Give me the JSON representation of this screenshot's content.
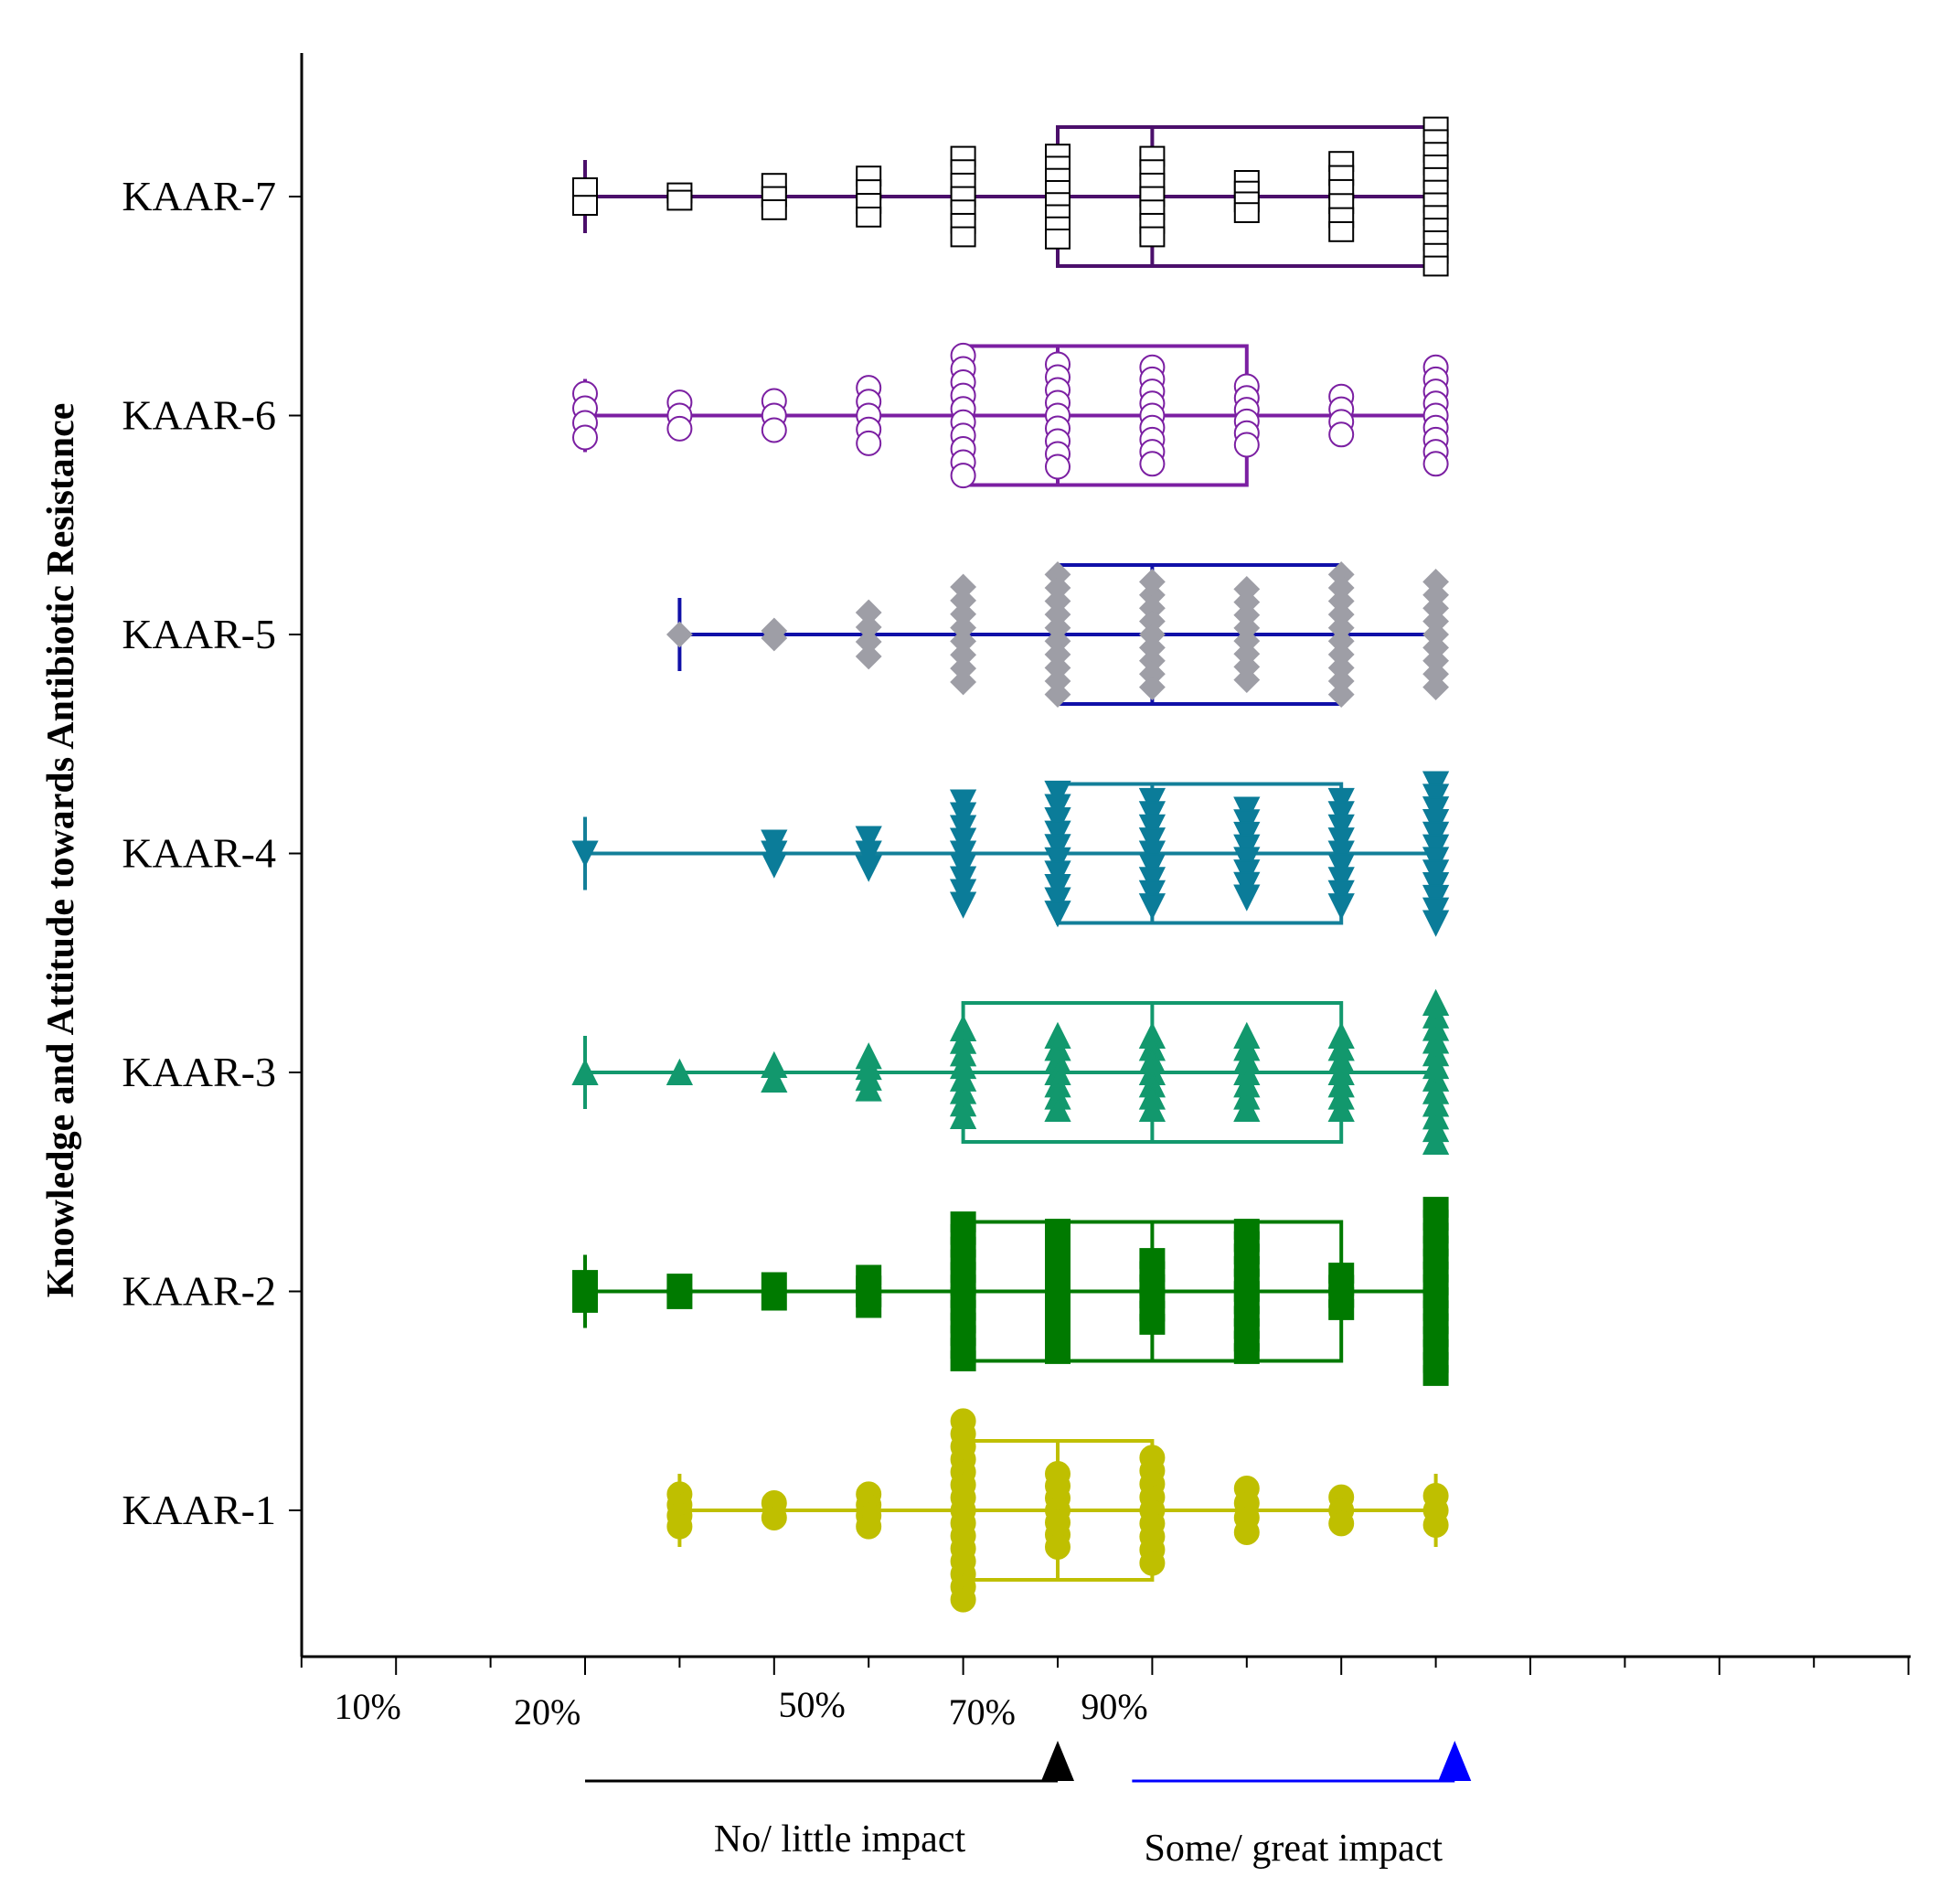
{
  "chart_data": {
    "type": "box",
    "ylabel": "Knowledge and Attitude towards Antibiotic Resistance",
    "xlabel": "",
    "xlim": [
      -3,
      14
    ],
    "categories": [
      "KAAR-7",
      "KAAR-6",
      "KAAR-5",
      "KAAR-4",
      "KAAR-3",
      "KAAR-2",
      "KAAR-1"
    ],
    "x_tick_labels": [
      {
        "text": "10%",
        "x": 2.7
      },
      {
        "text": "20%",
        "x": 4.6
      },
      {
        "text": "50%",
        "x": 7.4
      },
      {
        "text": "70%",
        "x": 9.2
      },
      {
        "text": "90%",
        "x": 10.6
      }
    ],
    "annotations": {
      "no_impact_label": "No/ little impact",
      "some_impact_label": "Some/ great impact",
      "no_impact_range": [
        0,
        5
      ],
      "some_impact_range": [
        5.4,
        9.2
      ],
      "no_impact_color": "#000000",
      "some_impact_color": "#0000ff"
    },
    "series": [
      {
        "category": "KAAR-7",
        "color": "#4b0f6b",
        "marker": "square",
        "fill": "#ffffff",
        "edge": "#000000",
        "whisker": [
          0,
          9
        ],
        "q1": 5,
        "median": 6,
        "q3": 9,
        "points": [
          {
            "x": 0,
            "spread": 0.12
          },
          {
            "x": 1,
            "spread": 0.05
          },
          {
            "x": 2,
            "spread": 0.18
          },
          {
            "x": 3,
            "spread": 0.28
          },
          {
            "x": 4,
            "spread": 0.55
          },
          {
            "x": 5,
            "spread": 0.58
          },
          {
            "x": 6,
            "spread": 0.55
          },
          {
            "x": 7,
            "spread": 0.22
          },
          {
            "x": 8,
            "spread": 0.48
          },
          {
            "x": 9,
            "spread": 0.95
          }
        ]
      },
      {
        "category": "KAAR-6",
        "color": "#7b1fa2",
        "marker": "circle",
        "fill": "#ffffff",
        "edge": "#7b1fa2",
        "whisker": [
          0,
          9
        ],
        "q1": 4,
        "median": 5,
        "q3": 7,
        "points": [
          {
            "x": 0,
            "spread": 0.3
          },
          {
            "x": 1,
            "spread": 0.18
          },
          {
            "x": 2,
            "spread": 0.2
          },
          {
            "x": 3,
            "spread": 0.38
          },
          {
            "x": 4,
            "spread": 0.82
          },
          {
            "x": 5,
            "spread": 0.7
          },
          {
            "x": 6,
            "spread": 0.66
          },
          {
            "x": 7,
            "spread": 0.4
          },
          {
            "x": 8,
            "spread": 0.26
          },
          {
            "x": 9,
            "spread": 0.66
          }
        ]
      },
      {
        "category": "KAAR-5",
        "color": "#1010a8",
        "marker": "diamond",
        "fill": "#9e9ea6",
        "edge": "#9e9ea6",
        "whisker": [
          1,
          9
        ],
        "q1": 5,
        "median": 6,
        "q3": 8,
        "points": [
          {
            "x": 1,
            "spread": 0.0
          },
          {
            "x": 2,
            "spread": 0.05
          },
          {
            "x": 3,
            "spread": 0.3
          },
          {
            "x": 4,
            "spread": 0.65
          },
          {
            "x": 5,
            "spread": 0.82
          },
          {
            "x": 6,
            "spread": 0.72
          },
          {
            "x": 7,
            "spread": 0.62
          },
          {
            "x": 8,
            "spread": 0.82
          },
          {
            "x": 9,
            "spread": 0.72
          }
        ]
      },
      {
        "category": "KAAR-4",
        "color": "#137f99",
        "marker": "triangle-down",
        "fill": "#0b7c99",
        "edge": "#0b7c99",
        "whisker": [
          0,
          9
        ],
        "q1": 5,
        "median": 6,
        "q3": 8,
        "points": [
          {
            "x": 0,
            "spread": 0.0
          },
          {
            "x": 2,
            "spread": 0.15
          },
          {
            "x": 3,
            "spread": 0.2
          },
          {
            "x": 4,
            "spread": 0.7
          },
          {
            "x": 5,
            "spread": 0.82
          },
          {
            "x": 6,
            "spread": 0.72
          },
          {
            "x": 7,
            "spread": 0.6
          },
          {
            "x": 8,
            "spread": 0.72
          },
          {
            "x": 9,
            "spread": 0.95
          }
        ]
      },
      {
        "category": "KAAR-3",
        "color": "#12986d",
        "marker": "triangle-up",
        "fill": "#12986d",
        "edge": "#12986d",
        "whisker": [
          0,
          9
        ],
        "q1": 4,
        "median": 6,
        "q3": 8,
        "points": [
          {
            "x": 0,
            "spread": 0.0
          },
          {
            "x": 1,
            "spread": 0.0
          },
          {
            "x": 2,
            "spread": 0.1
          },
          {
            "x": 3,
            "spread": 0.22
          },
          {
            "x": 4,
            "spread": 0.6
          },
          {
            "x": 5,
            "spread": 0.5
          },
          {
            "x": 6,
            "spread": 0.5
          },
          {
            "x": 7,
            "spread": 0.5
          },
          {
            "x": 8,
            "spread": 0.5
          },
          {
            "x": 9,
            "spread": 0.95
          }
        ]
      },
      {
        "category": "KAAR-2",
        "color": "#007a00",
        "marker": "square",
        "fill": "#007a00",
        "edge": "#007a00",
        "whisker": [
          0,
          9
        ],
        "q1": 4,
        "median": 6,
        "q3": 8,
        "points": [
          {
            "x": 0,
            "spread": 0.15
          },
          {
            "x": 1,
            "spread": 0.1
          },
          {
            "x": 2,
            "spread": 0.12
          },
          {
            "x": 3,
            "spread": 0.22
          },
          {
            "x": 4,
            "spread": 0.95
          },
          {
            "x": 5,
            "spread": 0.85
          },
          {
            "x": 6,
            "spread": 0.45
          },
          {
            "x": 7,
            "spread": 0.85
          },
          {
            "x": 8,
            "spread": 0.25
          },
          {
            "x": 9,
            "spread": 1.15
          }
        ]
      },
      {
        "category": "KAAR-1",
        "color": "#bfbf00",
        "marker": "circle",
        "fill": "#bfbf00",
        "edge": "#bfbf00",
        "whisker": [
          1,
          9
        ],
        "q1": 4,
        "median": 5,
        "q3": 6,
        "points": [
          {
            "x": 1,
            "spread": 0.22
          },
          {
            "x": 2,
            "spread": 0.1
          },
          {
            "x": 3,
            "spread": 0.22
          },
          {
            "x": 4,
            "spread": 1.22
          },
          {
            "x": 5,
            "spread": 0.5
          },
          {
            "x": 6,
            "spread": 0.72
          },
          {
            "x": 7,
            "spread": 0.3
          },
          {
            "x": 8,
            "spread": 0.18
          },
          {
            "x": 9,
            "spread": 0.2
          }
        ]
      }
    ]
  }
}
